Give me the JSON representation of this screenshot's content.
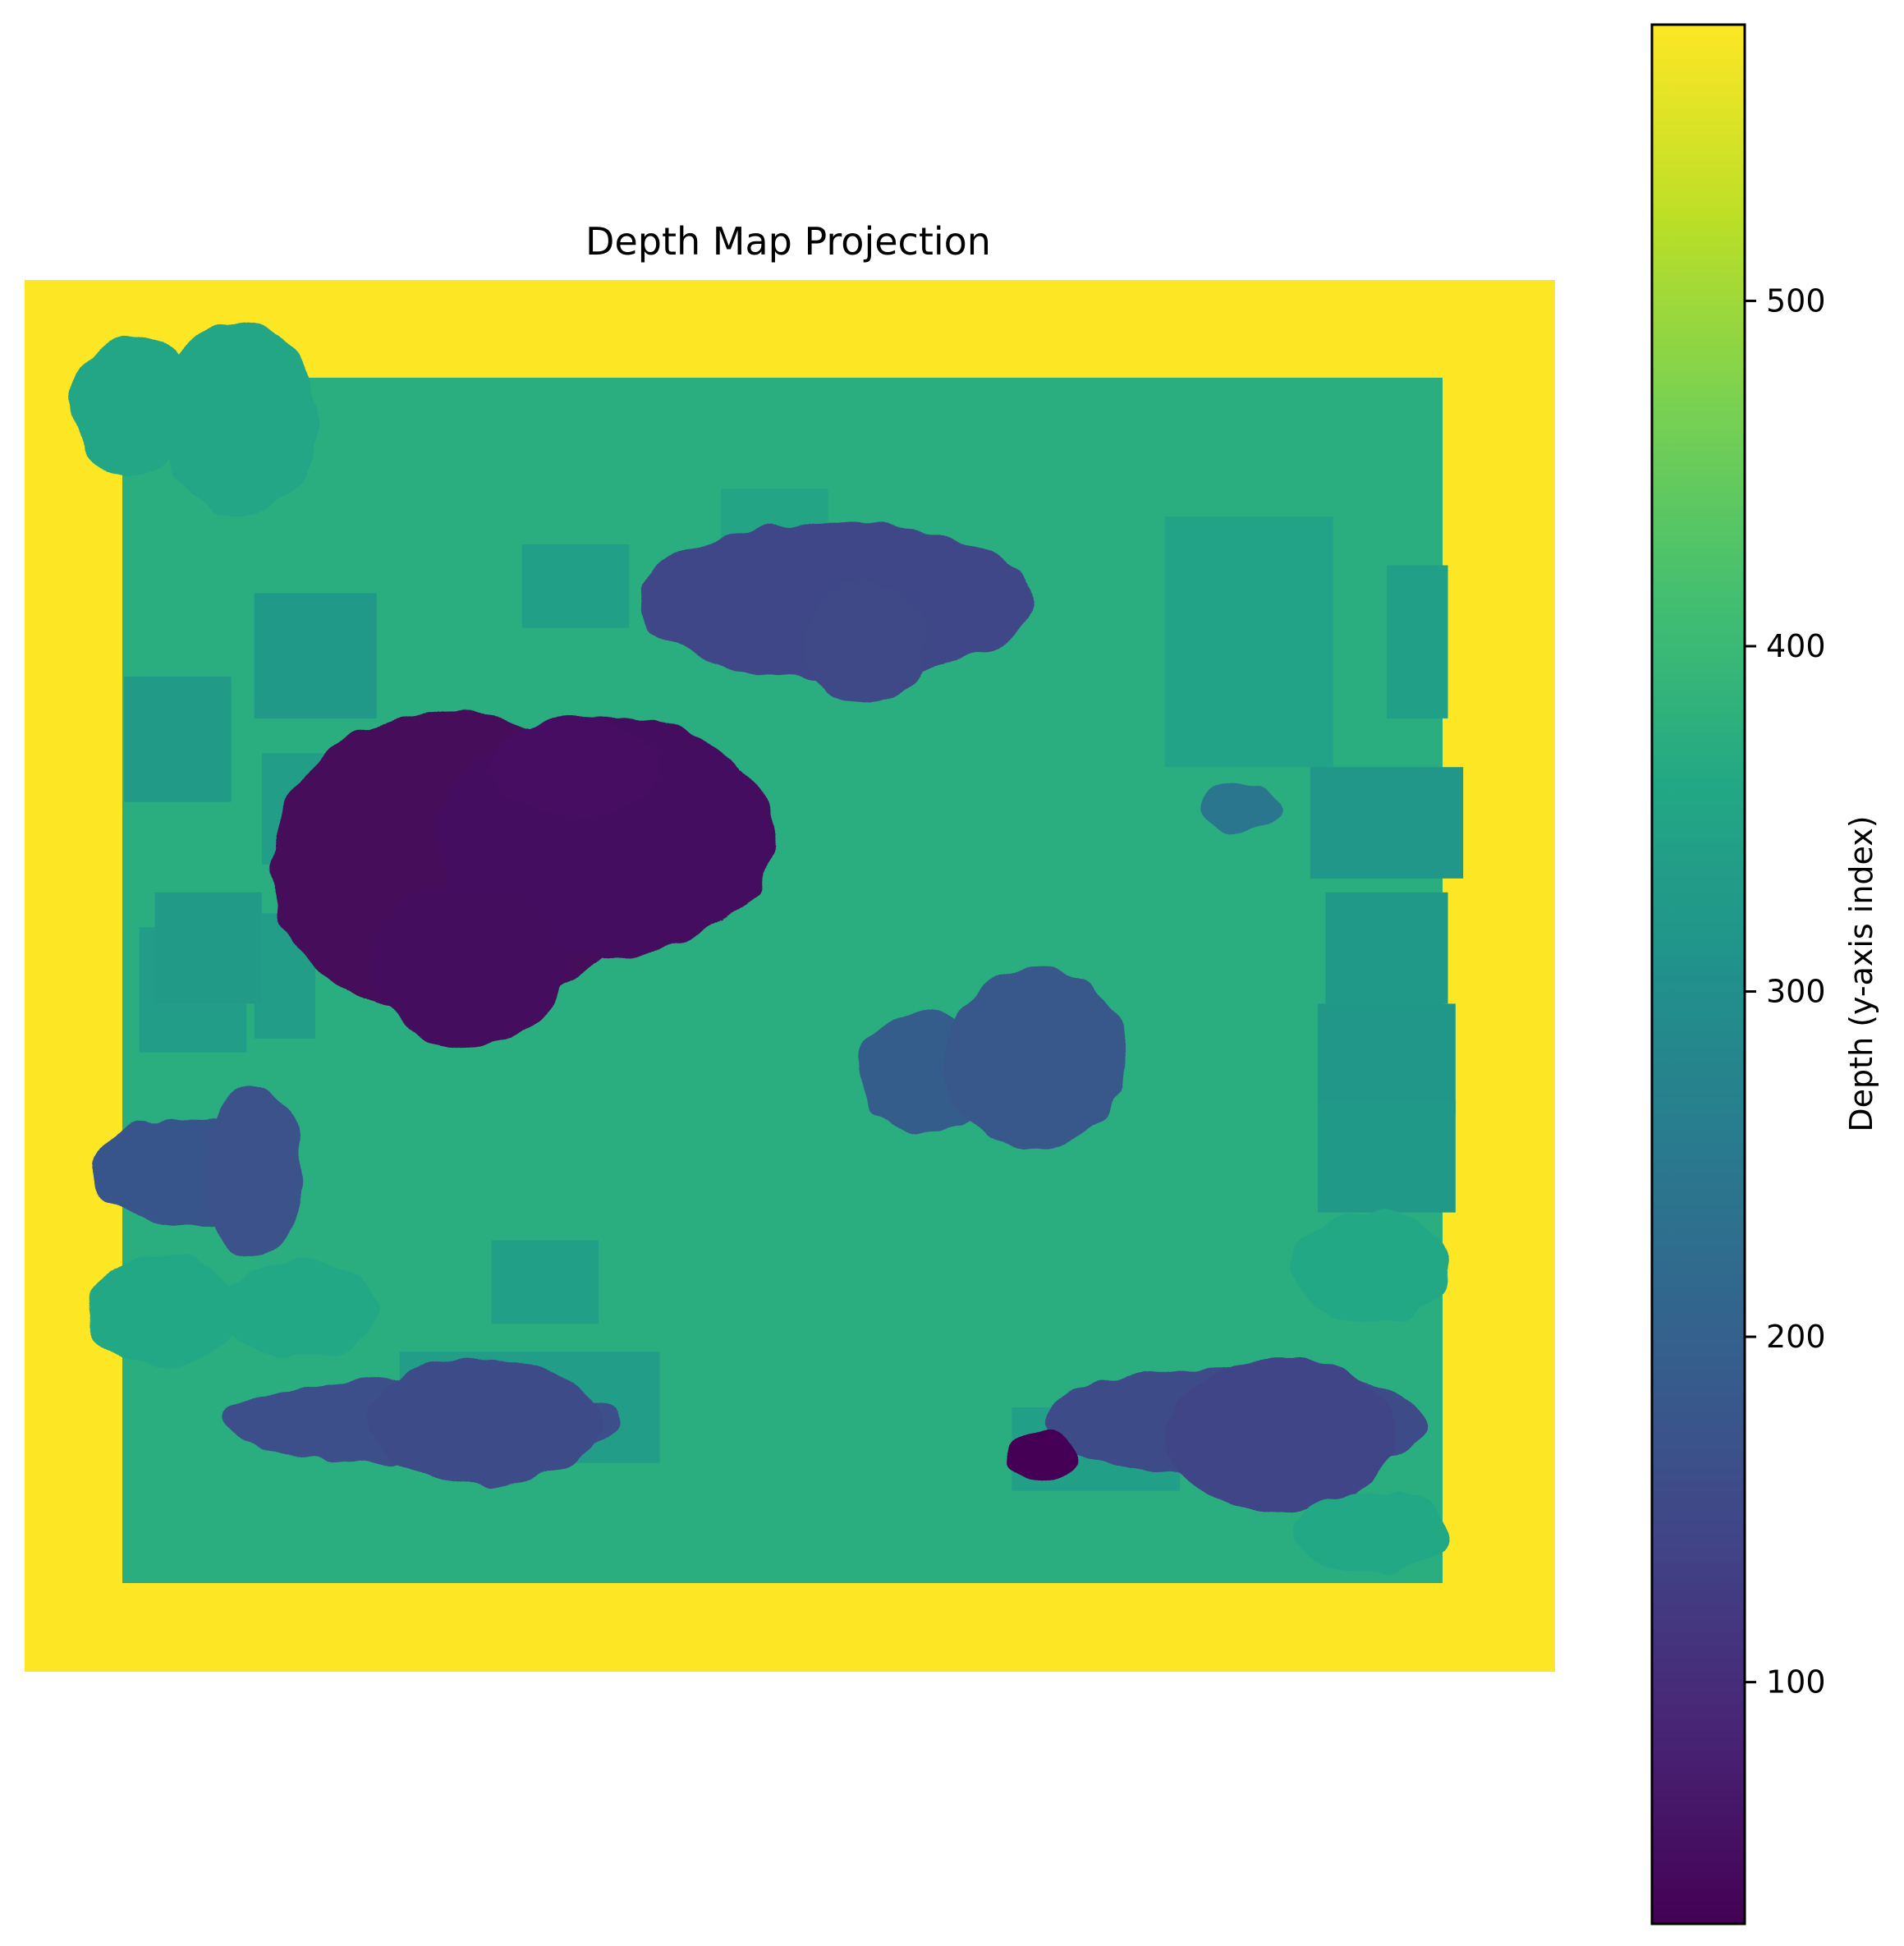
{
  "chart_data": {
    "type": "heatmap",
    "title": "Depth Map Projection",
    "axes_visible": false,
    "colormap": "viridis",
    "colorbar": {
      "label": "Depth (y-axis index)",
      "range": [
        30,
        580
      ],
      "ticks": [
        100,
        200,
        300,
        400,
        500
      ],
      "tick_labels": [
        "100",
        "200",
        "300",
        "400",
        "500"
      ]
    },
    "background_value": 580,
    "floor_value": 375,
    "regions": [
      {
        "kind": "rect",
        "value": 330,
        "cx": 0.1,
        "cy": 0.33,
        "rx": 0.035,
        "ry": 0.045
      },
      {
        "kind": "rect",
        "value": 325,
        "cx": 0.19,
        "cy": 0.27,
        "rx": 0.04,
        "ry": 0.045
      },
      {
        "kind": "rect",
        "value": 335,
        "cx": 0.18,
        "cy": 0.38,
        "rx": 0.025,
        "ry": 0.04
      },
      {
        "kind": "rect",
        "value": 340,
        "cx": 0.36,
        "cy": 0.22,
        "rx": 0.035,
        "ry": 0.03
      },
      {
        "kind": "rect",
        "value": 350,
        "cx": 0.49,
        "cy": 0.19,
        "rx": 0.035,
        "ry": 0.04
      },
      {
        "kind": "rect",
        "value": 345,
        "cx": 0.8,
        "cy": 0.26,
        "rx": 0.055,
        "ry": 0.09
      },
      {
        "kind": "rect",
        "value": 340,
        "cx": 0.91,
        "cy": 0.26,
        "rx": 0.02,
        "ry": 0.055
      },
      {
        "kind": "rect",
        "value": 320,
        "cx": 0.89,
        "cy": 0.39,
        "rx": 0.05,
        "ry": 0.04
      },
      {
        "kind": "rect",
        "value": 325,
        "cx": 0.89,
        "cy": 0.48,
        "rx": 0.04,
        "ry": 0.04
      },
      {
        "kind": "rect",
        "value": 320,
        "cx": 0.89,
        "cy": 0.56,
        "rx": 0.045,
        "ry": 0.04
      },
      {
        "kind": "rect",
        "value": 325,
        "cx": 0.89,
        "cy": 0.63,
        "rx": 0.045,
        "ry": 0.04
      },
      {
        "kind": "rect",
        "value": 335,
        "cx": 0.11,
        "cy": 0.51,
        "rx": 0.035,
        "ry": 0.045
      },
      {
        "kind": "rect",
        "value": 335,
        "cx": 0.17,
        "cy": 0.5,
        "rx": 0.02,
        "ry": 0.045
      },
      {
        "kind": "rect",
        "value": 340,
        "cx": 0.34,
        "cy": 0.72,
        "rx": 0.035,
        "ry": 0.03
      },
      {
        "kind": "rect",
        "value": 335,
        "cx": 0.33,
        "cy": 0.81,
        "rx": 0.085,
        "ry": 0.04
      },
      {
        "kind": "rect",
        "value": 340,
        "cx": 0.7,
        "cy": 0.84,
        "rx": 0.055,
        "ry": 0.03
      },
      {
        "kind": "rect",
        "value": 330,
        "cx": 0.12,
        "cy": 0.48,
        "rx": 0.035,
        "ry": 0.04
      },
      {
        "kind": "blob",
        "value": 40,
        "cx": 0.28,
        "cy": 0.42,
        "rx": 0.12,
        "ry": 0.11
      },
      {
        "kind": "blob",
        "value": 50,
        "cx": 0.38,
        "cy": 0.4,
        "rx": 0.11,
        "ry": 0.085
      },
      {
        "kind": "blob",
        "value": 55,
        "cx": 0.36,
        "cy": 0.35,
        "rx": 0.055,
        "ry": 0.035
      },
      {
        "kind": "blob",
        "value": 45,
        "cx": 0.29,
        "cy": 0.49,
        "rx": 0.065,
        "ry": 0.06
      },
      {
        "kind": "blob",
        "value": 145,
        "cx": 0.53,
        "cy": 0.23,
        "rx": 0.13,
        "ry": 0.055
      },
      {
        "kind": "blob",
        "value": 150,
        "cx": 0.55,
        "cy": 0.26,
        "rx": 0.04,
        "ry": 0.045
      },
      {
        "kind": "blob",
        "value": 190,
        "cx": 0.59,
        "cy": 0.57,
        "rx": 0.045,
        "ry": 0.045
      },
      {
        "kind": "blob",
        "value": 180,
        "cx": 0.66,
        "cy": 0.56,
        "rx": 0.06,
        "ry": 0.065
      },
      {
        "kind": "blob",
        "value": 175,
        "cx": 0.11,
        "cy": 0.64,
        "rx": 0.065,
        "ry": 0.04
      },
      {
        "kind": "blob",
        "value": 170,
        "cx": 0.15,
        "cy": 0.64,
        "rx": 0.033,
        "ry": 0.06
      },
      {
        "kind": "blob",
        "value": 165,
        "cx": 0.26,
        "cy": 0.82,
        "rx": 0.13,
        "ry": 0.03
      },
      {
        "kind": "blob",
        "value": 155,
        "cx": 0.3,
        "cy": 0.82,
        "rx": 0.075,
        "ry": 0.045
      },
      {
        "kind": "blob",
        "value": 155,
        "cx": 0.79,
        "cy": 0.82,
        "rx": 0.125,
        "ry": 0.04
      },
      {
        "kind": "blob",
        "value": 140,
        "cx": 0.82,
        "cy": 0.83,
        "rx": 0.075,
        "ry": 0.055
      },
      {
        "kind": "blob",
        "value": 30,
        "cx": 0.665,
        "cy": 0.845,
        "rx": 0.022,
        "ry": 0.018
      },
      {
        "kind": "blob",
        "value": 245,
        "cx": 0.795,
        "cy": 0.38,
        "rx": 0.025,
        "ry": 0.018
      },
      {
        "kind": "blob",
        "value": 355,
        "cx": 0.07,
        "cy": 0.09,
        "rx": 0.04,
        "ry": 0.05
      },
      {
        "kind": "blob",
        "value": 355,
        "cx": 0.14,
        "cy": 0.1,
        "rx": 0.05,
        "ry": 0.07
      },
      {
        "kind": "blob",
        "value": 360,
        "cx": 0.09,
        "cy": 0.74,
        "rx": 0.05,
        "ry": 0.04
      },
      {
        "kind": "blob",
        "value": 360,
        "cx": 0.18,
        "cy": 0.74,
        "rx": 0.05,
        "ry": 0.035
      },
      {
        "kind": "blob",
        "value": 360,
        "cx": 0.88,
        "cy": 0.71,
        "rx": 0.05,
        "ry": 0.04
      },
      {
        "kind": "blob",
        "value": 360,
        "cx": 0.88,
        "cy": 0.9,
        "rx": 0.05,
        "ry": 0.03
      }
    ]
  }
}
